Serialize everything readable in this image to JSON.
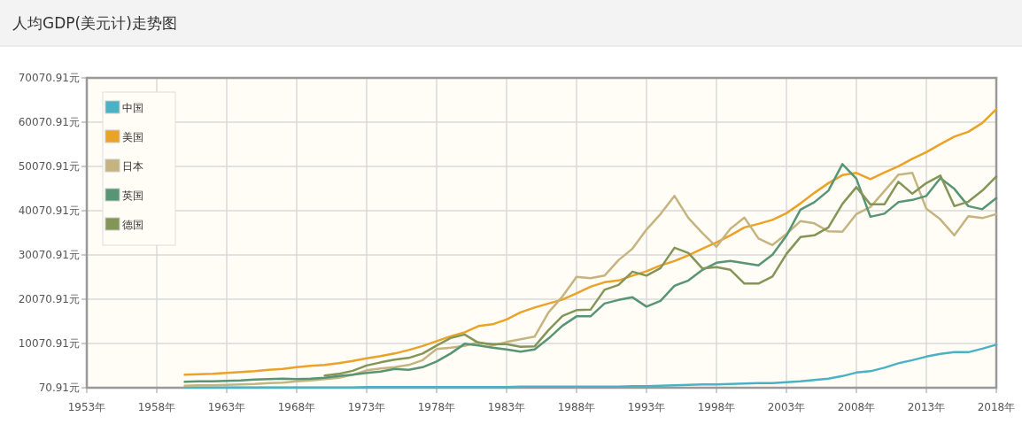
{
  "chart_data": {
    "type": "line",
    "title": "人均GDP(美元计)走势图",
    "x": [
      1960,
      1961,
      1962,
      1963,
      1964,
      1965,
      1966,
      1967,
      1968,
      1969,
      1970,
      1971,
      1972,
      1973,
      1974,
      1975,
      1976,
      1977,
      1978,
      1979,
      1980,
      1981,
      1982,
      1983,
      1984,
      1985,
      1986,
      1987,
      1988,
      1989,
      1990,
      1991,
      1992,
      1993,
      1994,
      1995,
      1996,
      1997,
      1998,
      1999,
      2000,
      2001,
      2002,
      2003,
      2004,
      2005,
      2006,
      2007,
      2008,
      2009,
      2010,
      2011,
      2012,
      2013,
      2014,
      2015,
      2016,
      2017,
      2018
    ],
    "series": [
      {
        "name": "中国",
        "color": "#4bb2c5",
        "values": [
          100,
          100,
          100,
          100,
          100,
          100,
          100,
          100,
          100,
          100,
          100,
          100,
          100,
          200,
          200,
          200,
          200,
          200,
          200,
          200,
          200,
          200,
          200,
          200,
          300,
          300,
          300,
          300,
          300,
          300,
          300,
          300,
          400,
          400,
          500,
          600,
          700,
          800,
          800,
          900,
          1000,
          1100,
          1100,
          1300,
          1500,
          1800,
          2100,
          2700,
          3500,
          3800,
          4600,
          5600,
          6300,
          7100,
          7700,
          8100,
          8100,
          8900,
          9800
        ]
      },
      {
        "name": "美国",
        "color": "#eaa228",
        "values": [
          3000,
          3100,
          3200,
          3400,
          3600,
          3800,
          4100,
          4300,
          4700,
          5000,
          5200,
          5600,
          6100,
          6700,
          7200,
          7800,
          8600,
          9500,
          10600,
          11700,
          12600,
          14000,
          14400,
          15500,
          17100,
          18200,
          19100,
          20000,
          21400,
          22900,
          23900,
          24300,
          25400,
          26400,
          27700,
          28700,
          30000,
          31500,
          32900,
          34500,
          36300,
          37100,
          38000,
          39500,
          41700,
          44100,
          46300,
          48100,
          48600,
          47200,
          48700,
          50100,
          51800,
          53300,
          55100,
          56800,
          57900,
          59900,
          63000
        ]
      },
      {
        "name": "日本",
        "color": "#c5b47f",
        "values": [
          500,
          600,
          600,
          700,
          800,
          900,
          1100,
          1200,
          1500,
          1700,
          2000,
          2300,
          3000,
          4000,
          4400,
          4700,
          5200,
          6300,
          8800,
          9100,
          9500,
          10400,
          9600,
          10400,
          11000,
          11600,
          17100,
          20700,
          25100,
          24800,
          25400,
          28900,
          31500,
          35800,
          39300,
          43400,
          38400,
          35000,
          31900,
          36000,
          38500,
          33800,
          32300,
          34800,
          37700,
          37200,
          35400,
          35300,
          39300,
          40900,
          44500,
          48200,
          48600,
          40500,
          38100,
          34500,
          38800,
          38400,
          39300
        ]
      },
      {
        "name": "英国",
        "color": "#579575",
        "values": [
          1400,
          1500,
          1500,
          1600,
          1700,
          1900,
          2000,
          2100,
          2000,
          2100,
          2300,
          2700,
          3000,
          3400,
          3700,
          4300,
          4100,
          4700,
          6000,
          7800,
          10000,
          9600,
          9100,
          8700,
          8200,
          8700,
          11200,
          14100,
          16200,
          16200,
          19100,
          19900,
          20500,
          18400,
          19700,
          23100,
          24300,
          26700,
          28300,
          28700,
          28200,
          27700,
          30100,
          34400,
          40300,
          42000,
          44600,
          50600,
          47300,
          38700,
          39400,
          42000,
          42500,
          43400,
          47400,
          45000,
          41100,
          40400,
          42900
        ]
      },
      {
        "name": "德国",
        "color": "#839557",
        "values": [
          null,
          null,
          null,
          null,
          null,
          null,
          null,
          null,
          null,
          null,
          2800,
          3200,
          3900,
          5100,
          5800,
          6400,
          6800,
          7800,
          9600,
          11300,
          12100,
          10200,
          9900,
          9900,
          9300,
          9400,
          13100,
          16300,
          17600,
          17700,
          22200,
          23300,
          26300,
          25400,
          27100,
          31700,
          30500,
          27000,
          27300,
          26700,
          23600,
          23600,
          25200,
          30300,
          34100,
          34500,
          36300,
          41600,
          45400,
          41500,
          41500,
          46600,
          43900,
          46300,
          48000,
          41100,
          42100,
          44600,
          47800
        ]
      }
    ],
    "xlim": [
      1953,
      2018
    ],
    "xticks": [
      {
        "value": 1953,
        "label": "1953年"
      },
      {
        "value": 1958,
        "label": "1958年"
      },
      {
        "value": 1963,
        "label": "1963年"
      },
      {
        "value": 1968,
        "label": "1968年"
      },
      {
        "value": 1973,
        "label": "1973年"
      },
      {
        "value": 1978,
        "label": "1978年"
      },
      {
        "value": 1983,
        "label": "1983年"
      },
      {
        "value": 1988,
        "label": "1988年"
      },
      {
        "value": 1993,
        "label": "1993年"
      },
      {
        "value": 1998,
        "label": "1998年"
      },
      {
        "value": 2003,
        "label": "2003年"
      },
      {
        "value": 2008,
        "label": "2008年"
      },
      {
        "value": 2013,
        "label": "2013年"
      },
      {
        "value": 2018,
        "label": "2018年"
      }
    ],
    "ylim": [
      70.91,
      70070.91
    ],
    "yticks": [
      {
        "value": 70.91,
        "label": "70.91元"
      },
      {
        "value": 10070.91,
        "label": "10070.91元"
      },
      {
        "value": 20070.91,
        "label": "20070.91元"
      },
      {
        "value": 30070.91,
        "label": "30070.91元"
      },
      {
        "value": 40070.91,
        "label": "40070.91元"
      },
      {
        "value": 50070.91,
        "label": "50070.91元"
      },
      {
        "value": 60070.91,
        "label": "60070.91元"
      },
      {
        "value": 70070.91,
        "label": "70070.91元"
      }
    ],
    "grid": true,
    "legend": "top left",
    "marker": "none",
    "line_style": "solid"
  }
}
